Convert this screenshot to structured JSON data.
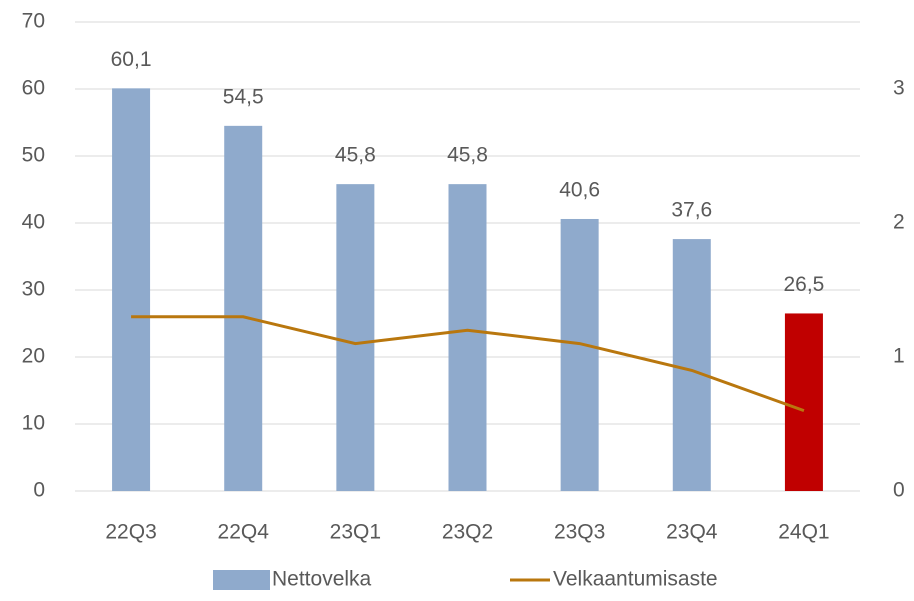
{
  "chart_data": {
    "type": "bar-line",
    "categories": [
      "22Q3",
      "22Q4",
      "23Q1",
      "23Q2",
      "23Q3",
      "23Q4",
      "24Q1"
    ],
    "series": [
      {
        "name": "Nettovelka",
        "type": "bar",
        "color": "#8faacc",
        "colors": [
          "#8faacc",
          "#8faacc",
          "#8faacc",
          "#8faacc",
          "#8faacc",
          "#8faacc",
          "#c00000"
        ],
        "values": [
          60.1,
          54.5,
          45.8,
          45.8,
          40.6,
          37.6,
          26.5
        ],
        "value_labels": [
          "60,1",
          "54,5",
          "45,8",
          "45,8",
          "40,6",
          "37,6",
          "26,5"
        ]
      },
      {
        "name": "Velkaantumisaste",
        "type": "line",
        "color": "#b9770e",
        "axis": "y2",
        "values": [
          1.3,
          1.3,
          1.1,
          1.2,
          1.1,
          0.9,
          0.6
        ]
      }
    ],
    "ylim": [
      0,
      70
    ],
    "yticks": [
      0,
      10,
      20,
      30,
      40,
      50,
      60,
      70
    ],
    "y2lim": [
      0,
      3.5
    ],
    "y2ticks": [
      0,
      1,
      2,
      3
    ],
    "grid": true,
    "legend": "bottom"
  }
}
